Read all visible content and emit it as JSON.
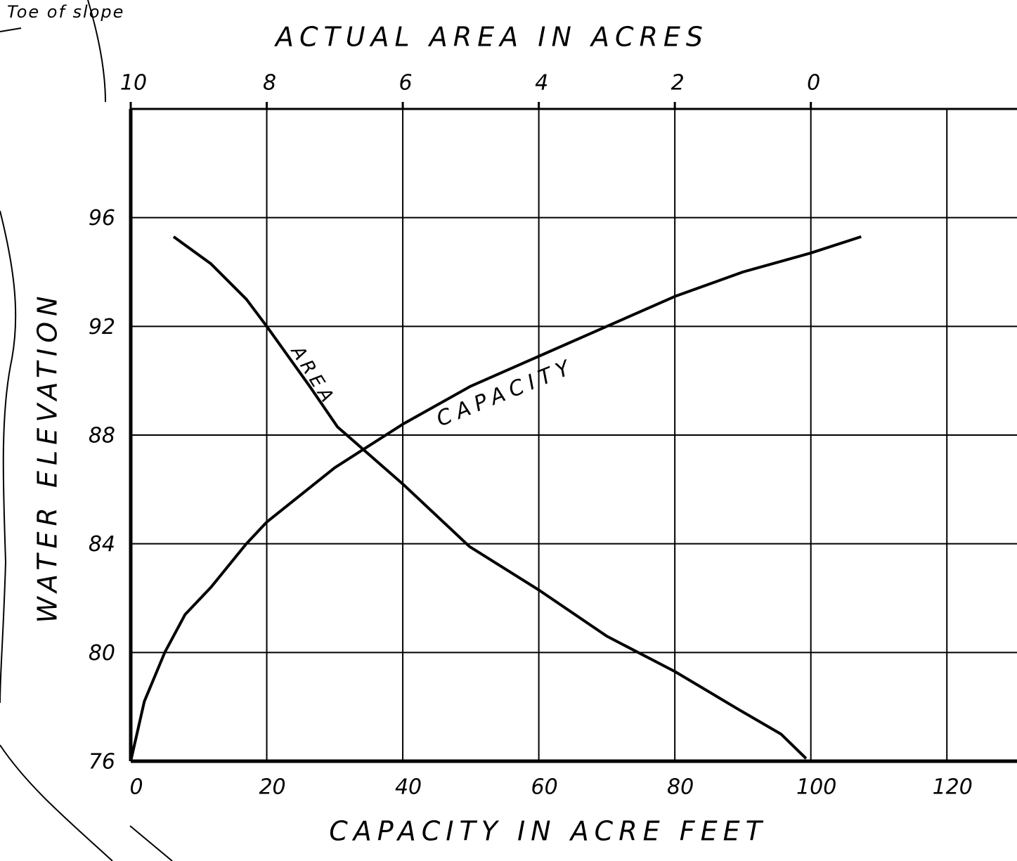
{
  "chart_data": {
    "type": "line",
    "title_top": "ACTUAL AREA IN ACRES",
    "xlabel": "CAPACITY IN ACRE FEET",
    "ylabel": "WATER ELEVATION",
    "annotations": [
      "Toe of slope",
      "AREA",
      "CAPACITY"
    ],
    "xlim": [
      0,
      130
    ],
    "xticks": [
      0,
      20,
      40,
      60,
      80,
      100,
      120
    ],
    "x2lim": [
      10,
      -3
    ],
    "x2ticks": [
      10,
      8,
      6,
      4,
      2,
      0
    ],
    "ylim": [
      76,
      100
    ],
    "yticks": [
      76,
      80,
      84,
      88,
      92,
      96
    ],
    "grid": true,
    "series": [
      {
        "name": "CAPACITY",
        "color": "#000000",
        "axis": "x",
        "x": [
          0,
          2,
          5,
          8,
          11.8,
          17,
          20,
          30,
          40,
          50,
          60,
          70,
          80,
          90,
          100,
          107.4
        ],
        "values": [
          76,
          78.2,
          80,
          81.4,
          82.4,
          84,
          84.8,
          86.8,
          88.4,
          89.8,
          90.9,
          92,
          93.1,
          94,
          94.7,
          95.3
        ]
      },
      {
        "name": "AREA",
        "color": "#000000",
        "axis": "x2",
        "x": [
          9.37,
          8.82,
          8.3,
          8.0,
          7.37,
          6.96,
          6.0,
          5.02,
          4.0,
          3.0,
          2.0,
          1.06,
          0.44,
          0.07
        ],
        "values": [
          95.3,
          94.3,
          93.0,
          92.0,
          89.8,
          88.3,
          86.2,
          83.9,
          82.3,
          80.6,
          79.3,
          77.9,
          77.0,
          76.1
        ]
      }
    ]
  }
}
